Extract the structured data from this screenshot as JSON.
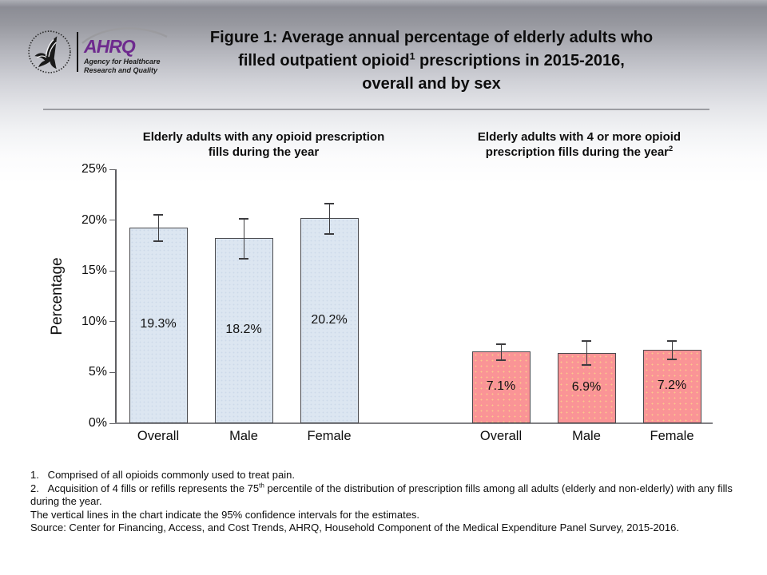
{
  "header": {
    "logo": {
      "hhs_seal": "hhs-eagle-seal",
      "org_acronym": "AHRQ",
      "org_name_line1": "Agency for Healthcare",
      "org_name_line2": "Research and Quality"
    },
    "title_line1": "Figure 1: Average annual percentage of elderly adults who",
    "title_line2_pre": "filled outpatient opioid",
    "title_line2_sup": "1",
    "title_line2_post": " prescriptions in 2015-2016,",
    "title_line3": "overall and by sex"
  },
  "chart_data": {
    "type": "bar",
    "ylabel": "Percentage",
    "xlabel": "",
    "ylim": [
      0,
      25
    ],
    "ytick_labels": [
      "0%",
      "5%",
      "10%",
      "15%",
      "20%",
      "25%"
    ],
    "grid": false,
    "legend": "none",
    "error_bars": "95% confidence intervals",
    "groups": [
      {
        "title_line1": "Elderly adults with any opioid prescription",
        "title_line2": "fills during the year",
        "title_sup": "",
        "categories": [
          "Overall",
          "Male",
          "Female"
        ],
        "values": [
          19.3,
          18.2,
          20.2
        ],
        "value_labels": [
          "19.3%",
          "18.2%",
          "20.2%"
        ],
        "ci_low": [
          17.9,
          16.2,
          18.6
        ],
        "ci_high": [
          20.5,
          20.1,
          21.6
        ],
        "bar_color": "#dce6f1"
      },
      {
        "title_line1": "Elderly adults with 4 or more opioid",
        "title_line2": "prescription fills during the year",
        "title_sup": "2",
        "categories": [
          "Overall",
          "Male",
          "Female"
        ],
        "values": [
          7.1,
          6.9,
          7.2
        ],
        "value_labels": [
          "7.1%",
          "6.9%",
          "7.2%"
        ],
        "ci_low": [
          6.2,
          5.7,
          6.3
        ],
        "ci_high": [
          7.8,
          8.1,
          8.1
        ],
        "bar_color": "#fa9496"
      }
    ]
  },
  "footnotes": {
    "note1": "1.   Comprised of all opioids commonly used to treat pain.",
    "note2_pre": "2.   Acquisition of 4 fills or refills represents the 75",
    "note2_sup": "th",
    "note2_post": " percentile of the distribution of prescription fills among all adults (elderly and non-elderly) with any fills during the year.",
    "note3": "The vertical lines in the chart indicate the 95% confidence intervals for the estimates.",
    "note4": "Source: Center for Financing, Access, and Cost Trends, AHRQ, Household Component of the Medical Expenditure Panel Survey, 2015-2016."
  }
}
